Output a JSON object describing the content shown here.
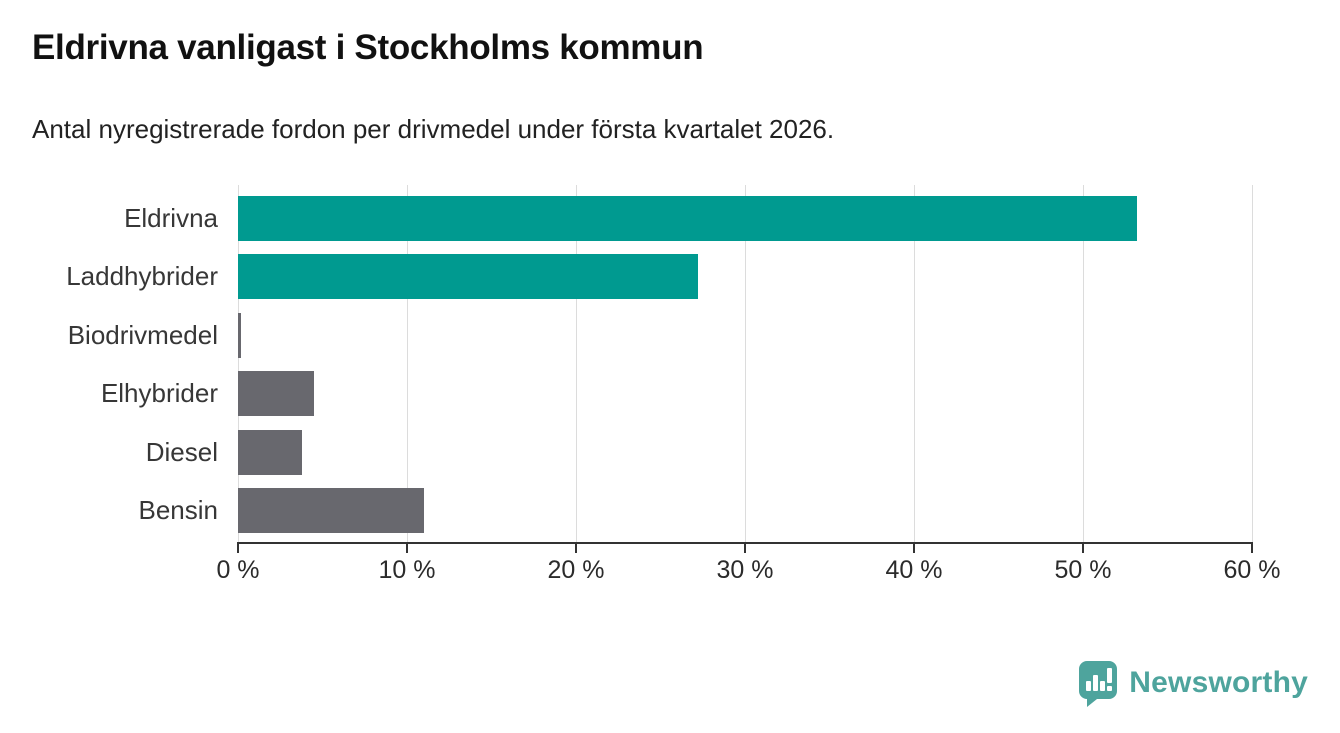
{
  "header": {
    "title": "Eldrivna vanligast i Stockholms kommun",
    "subtitle": "Antal nyregistrerade fordon per drivmedel under första kvartalet 2026."
  },
  "chart_data": {
    "type": "bar",
    "orientation": "horizontal",
    "title": "Eldrivna vanligast i Stockholms kommun",
    "subtitle": "Antal nyregistrerade fordon per drivmedel under första kvartalet 2026.",
    "categories": [
      "Eldrivna",
      "Laddhybrider",
      "Biodrivmedel",
      "Elhybrider",
      "Diesel",
      "Bensin"
    ],
    "values": [
      53.2,
      27.2,
      0.15,
      4.5,
      3.8,
      11.0
    ],
    "unit": "%",
    "xlabel": "",
    "ylabel": "",
    "xlim": [
      0,
      60
    ],
    "x_ticks": [
      0,
      10,
      20,
      30,
      40,
      50,
      60
    ],
    "x_tick_labels": [
      "0 %",
      "10 %",
      "20 %",
      "30 %",
      "40 %",
      "50 %",
      "60 %"
    ],
    "grid": true,
    "legend": false,
    "bar_colors": [
      "#009a90",
      "#009a90",
      "#68686e",
      "#68686e",
      "#68686e",
      "#68686e"
    ]
  },
  "colors": {
    "accent_teal": "#009a90",
    "bar_gray": "#68686e",
    "gridline": "#dcdcdc",
    "axis": "#333333",
    "title_text": "#111111",
    "body_text": "#222222",
    "brand_teal": "#4EA49D"
  },
  "branding": {
    "name": "Newsworthy",
    "logo_icon": "newsworthy-pin-chart-icon"
  }
}
